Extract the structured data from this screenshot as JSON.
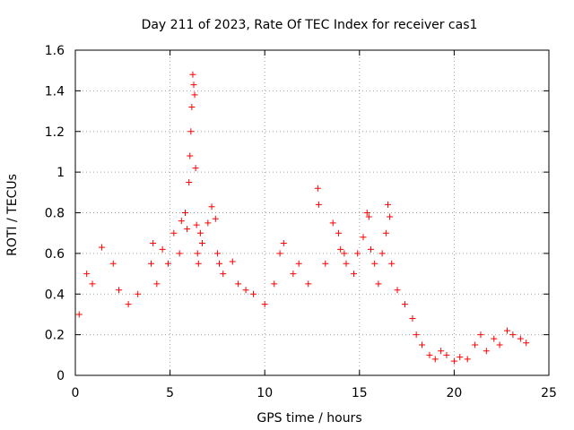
{
  "chart_data": {
    "type": "scatter",
    "title": "Day 211 of 2023, Rate Of TEC Index for receiver cas1",
    "xlabel": "GPS time / hours",
    "ylabel": "ROTI / TECUs",
    "xlim": [
      0,
      25
    ],
    "ylim": [
      0,
      1.6
    ],
    "xticks": [
      "0",
      "5",
      "10",
      "15",
      "20",
      "25"
    ],
    "yticks": [
      "0",
      "0.2",
      "0.4",
      "0.6",
      "0.8",
      "1",
      "1.2",
      "1.4",
      "1.6"
    ],
    "grid": true,
    "marker": "plus",
    "color": "#ff0000",
    "series": [
      {
        "x": [
          0.2,
          0.6,
          0.9,
          1.4,
          2.0,
          2.3,
          2.8,
          3.3,
          4.0,
          4.1,
          4.3,
          4.6,
          4.9,
          5.2,
          5.5,
          5.6,
          5.8,
          5.9,
          6.0,
          6.05,
          6.1,
          6.15,
          6.2,
          6.25,
          6.3,
          6.35,
          6.4,
          6.45,
          6.5,
          6.6,
          6.7,
          7.0,
          7.2,
          7.4,
          7.5,
          7.6,
          7.8,
          8.3,
          8.6,
          9.0,
          9.4,
          10.0,
          10.5,
          10.8,
          11.0,
          11.5,
          11.8,
          12.3,
          12.8,
          12.85,
          13.2,
          13.6,
          13.9,
          14.0,
          14.2,
          14.3,
          14.7,
          14.9,
          15.2,
          15.4,
          15.5,
          15.6,
          15.8,
          16.0,
          16.2,
          16.4,
          16.5,
          16.6,
          16.7,
          17.0,
          17.4,
          17.8,
          18.0,
          18.3,
          18.7,
          19.0,
          19.3,
          19.6,
          20.0,
          20.3,
          20.7,
          21.1,
          21.4,
          21.7,
          22.1,
          22.4,
          22.8,
          23.1,
          23.5,
          23.8
        ],
        "y": [
          0.3,
          0.5,
          0.45,
          0.63,
          0.55,
          0.42,
          0.35,
          0.4,
          0.55,
          0.65,
          0.45,
          0.62,
          0.55,
          0.7,
          0.6,
          0.76,
          0.8,
          0.72,
          0.95,
          1.08,
          1.2,
          1.32,
          1.48,
          1.43,
          1.38,
          1.02,
          0.74,
          0.6,
          0.55,
          0.7,
          0.65,
          0.75,
          0.83,
          0.77,
          0.6,
          0.55,
          0.5,
          0.56,
          0.45,
          0.42,
          0.4,
          0.35,
          0.45,
          0.6,
          0.65,
          0.5,
          0.55,
          0.45,
          0.92,
          0.84,
          0.55,
          0.75,
          0.7,
          0.62,
          0.6,
          0.55,
          0.5,
          0.6,
          0.68,
          0.8,
          0.78,
          0.62,
          0.55,
          0.45,
          0.6,
          0.7,
          0.84,
          0.78,
          0.55,
          0.42,
          0.35,
          0.28,
          0.2,
          0.15,
          0.1,
          0.08,
          0.12,
          0.1,
          0.07,
          0.09,
          0.08,
          0.15,
          0.2,
          0.12,
          0.18,
          0.15,
          0.22,
          0.2,
          0.18,
          0.16
        ]
      }
    ]
  }
}
